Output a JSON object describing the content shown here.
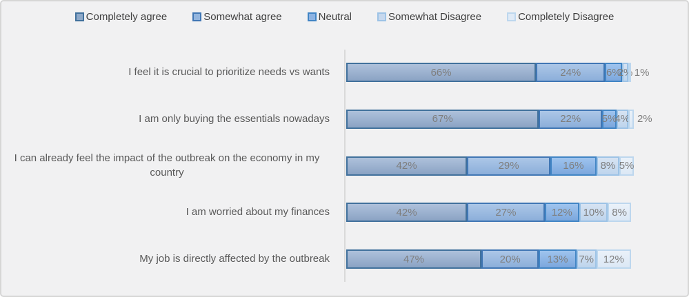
{
  "chart_data": {
    "type": "bar",
    "orientation": "horizontal",
    "stacked": true,
    "value_suffix": "%",
    "xlim": [
      0,
      100
    ],
    "grid": false,
    "legend_position": "top",
    "axis_color": "#d9d9d9",
    "background_color": "#f1f1f2",
    "label_color": "#7e7e7e",
    "category_color": "#595959",
    "categories": [
      "I feel it is crucial to prioritize needs vs wants",
      "I am only buying the essentials nowadays",
      "I can already feel the impact of the outbreak on the economy in my country",
      "I am worried about my finances",
      "My job is directly affected by the outbreak"
    ],
    "series": [
      {
        "name": "Completely agree",
        "values": [
          66,
          67,
          42,
          42,
          47
        ],
        "border_color": "#41719c",
        "fill_top": "#aec1db",
        "fill_bottom": "#8ba3c4",
        "legend_fill": "#8ea9c9"
      },
      {
        "name": "Somewhat agree",
        "values": [
          24,
          22,
          29,
          27,
          20
        ],
        "border_color": "#4076b4",
        "fill_top": "#acc7e7",
        "fill_bottom": "#8cafda",
        "legend_fill": "#93b5de"
      },
      {
        "name": "Neutral",
        "values": [
          6,
          5,
          16,
          12,
          13
        ],
        "border_color": "#4185c5",
        "fill_top": "#9fc4ee",
        "fill_bottom": "#7ca7dd",
        "legend_fill": "#8db3e2"
      },
      {
        "name": "Somewhat Disagree",
        "values": [
          2,
          4,
          8,
          10,
          7
        ],
        "border_color": "#9dc3e6",
        "fill_top": "#d7e3f2",
        "fill_bottom": "#bfd5ed",
        "legend_fill": "#c6d8ee"
      },
      {
        "name": "Completely Disagree",
        "values": [
          1,
          2,
          5,
          8,
          12
        ],
        "border_color": "#bdd7ee",
        "fill_top": "#eaf1f9",
        "fill_bottom": "#dce8f5",
        "legend_fill": "#dfeaf6"
      }
    ]
  }
}
